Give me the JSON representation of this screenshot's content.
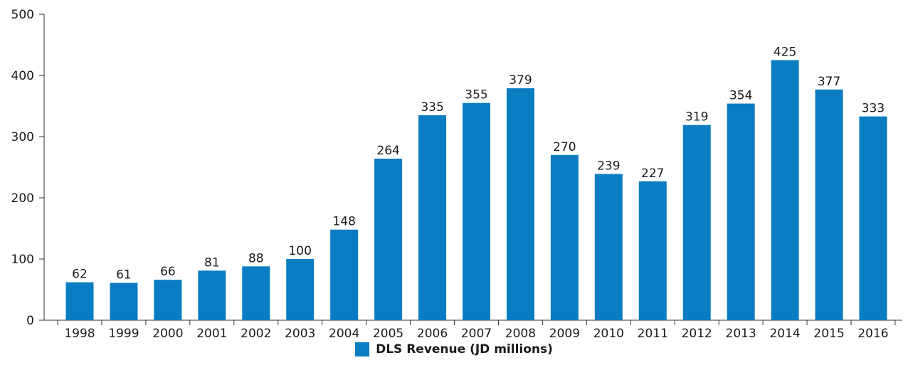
{
  "chart_data": {
    "type": "bar",
    "title": "",
    "xlabel": "",
    "ylabel": "",
    "categories": [
      "1998",
      "1999",
      "2000",
      "2001",
      "2002",
      "2003",
      "2004",
      "2005",
      "2006",
      "2007",
      "2008",
      "2009",
      "2010",
      "2011",
      "2012",
      "2013",
      "2014",
      "2015",
      "2016"
    ],
    "series": [
      {
        "name": "DLS Revenue (JD millions)",
        "values": [
          62,
          61,
          66,
          81,
          88,
          100,
          148,
          264,
          335,
          355,
          379,
          270,
          239,
          227,
          319,
          354,
          425,
          377,
          333
        ],
        "color": "#0A7DC2"
      }
    ],
    "ylim": [
      0,
      500
    ],
    "yticks": [
      0,
      100,
      200,
      300,
      400,
      500
    ],
    "grid": false,
    "data_labels": true,
    "legend_position": "bottom-center"
  }
}
